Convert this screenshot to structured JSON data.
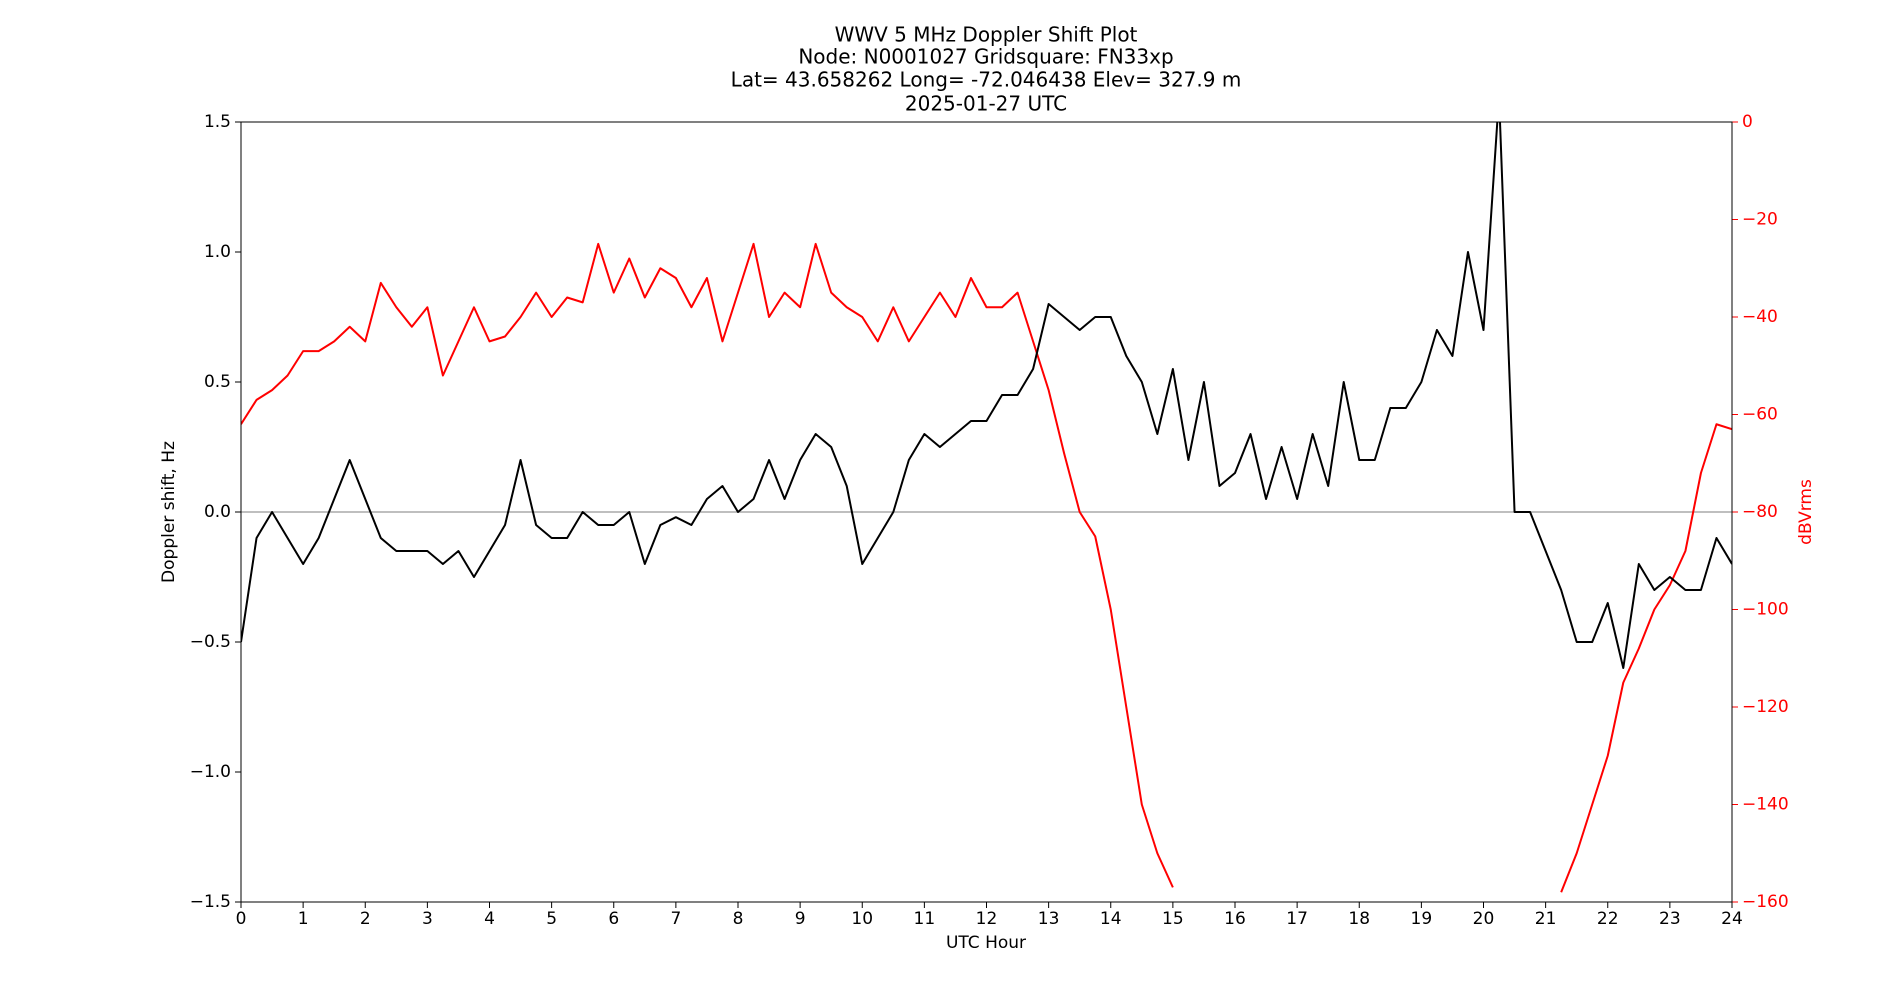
{
  "chart_data": {
    "type": "line",
    "title": "WWV 5 MHz Doppler Shift Plot",
    "subtitle": [
      "Node:  N0001027     Gridsquare:  FN33xp",
      "Lat=   43.658262    Long= -72.046438    Elev= 327.9 m",
      "2025-01-27  UTC"
    ],
    "xlabel": "UTC Hour",
    "ylabel": "Doppler shift, Hz",
    "y2label": "dBVrms",
    "x": [
      0,
      0.25,
      0.5,
      0.75,
      1,
      1.25,
      1.5,
      1.75,
      2,
      2.25,
      2.5,
      2.75,
      3,
      3.25,
      3.5,
      3.75,
      4,
      4.25,
      4.5,
      4.75,
      5,
      5.25,
      5.5,
      5.75,
      6,
      6.25,
      6.5,
      6.75,
      7,
      7.25,
      7.5,
      7.75,
      8,
      8.25,
      8.5,
      8.75,
      9,
      9.25,
      9.5,
      9.75,
      10,
      10.25,
      10.5,
      10.75,
      11,
      11.25,
      11.5,
      11.75,
      12,
      12.25,
      12.5,
      12.75,
      13,
      13.25,
      13.5,
      13.75,
      14,
      14.25,
      14.5,
      14.75,
      15,
      15.25,
      15.5,
      15.75,
      16,
      16.25,
      16.5,
      16.75,
      17,
      17.25,
      17.5,
      17.75,
      18,
      18.25,
      18.5,
      18.75,
      19,
      19.25,
      19.5,
      19.75,
      20,
      20.25,
      20.5,
      20.75,
      21,
      21.25,
      21.5,
      21.75,
      22,
      22.25,
      22.5,
      22.75,
      23,
      23.25,
      23.5,
      23.75,
      24
    ],
    "series": [
      {
        "name": "Doppler shift",
        "color": "#000000",
        "axis": "y",
        "values": [
          -0.5,
          -0.1,
          0.0,
          -0.1,
          -0.2,
          -0.1,
          0.05,
          0.2,
          0.05,
          -0.1,
          -0.15,
          -0.15,
          -0.15,
          -0.2,
          -0.15,
          -0.25,
          -0.15,
          -0.05,
          0.2,
          -0.05,
          -0.1,
          -0.1,
          0.0,
          -0.05,
          -0.05,
          0.0,
          -0.2,
          -0.05,
          -0.02,
          -0.05,
          0.05,
          0.1,
          0.0,
          0.05,
          0.2,
          0.05,
          0.2,
          0.3,
          0.25,
          0.1,
          -0.2,
          -0.1,
          0.0,
          0.2,
          0.3,
          0.25,
          0.3,
          0.35,
          0.35,
          0.45,
          0.45,
          0.55,
          0.8,
          0.75,
          0.7,
          0.75,
          0.75,
          0.6,
          0.5,
          0.3,
          0.55,
          0.2,
          0.5,
          0.1,
          0.15,
          0.3,
          0.05,
          0.25,
          0.05,
          0.3,
          0.1,
          0.5,
          0.2,
          0.2,
          0.4,
          0.4,
          0.5,
          0.7,
          0.6,
          1.0,
          0.7,
          1.6,
          0.0,
          0.0,
          -0.15,
          -0.3,
          -0.5,
          -0.5,
          -0.35,
          -0.6,
          -0.2,
          -0.3,
          -0.25,
          -0.3,
          -0.3,
          -0.1,
          -0.2
        ]
      },
      {
        "name": "dBVrms",
        "color": "#ff0000",
        "axis": "y2",
        "values": [
          -62,
          -57,
          -55,
          -52,
          -47,
          -47,
          -45,
          -42,
          -45,
          -33,
          -38,
          -42,
          -38,
          -52,
          -45,
          -38,
          -45,
          -44,
          -40,
          -35,
          -40,
          -36,
          -37,
          -25,
          -35,
          -28,
          -36,
          -30,
          -32,
          -38,
          -32,
          -45,
          -35,
          -25,
          -40,
          -35,
          -38,
          -25,
          -35,
          -38,
          -40,
          -45,
          -38,
          -45,
          -40,
          -35,
          -40,
          -32,
          -38,
          -38,
          -35,
          -45,
          -55,
          -68,
          -80,
          -85,
          -100,
          -120,
          -140,
          -150,
          -157,
          null,
          null,
          null,
          null,
          null,
          null,
          null,
          null,
          null,
          null,
          null,
          null,
          null,
          null,
          null,
          null,
          null,
          null,
          null,
          null,
          null,
          null,
          null,
          null,
          -158,
          -150,
          -140,
          -130,
          -115,
          -108,
          -100,
          -95,
          -88,
          -72,
          -62,
          -63
        ]
      }
    ],
    "xlim": [
      0,
      24
    ],
    "xticks": [
      0,
      1,
      2,
      3,
      4,
      5,
      6,
      7,
      8,
      9,
      10,
      11,
      12,
      13,
      14,
      15,
      16,
      17,
      18,
      19,
      20,
      21,
      22,
      23,
      24
    ],
    "ylim": [
      -1.5,
      1.5
    ],
    "yticks": [
      {
        "value": -1.5,
        "label": "−1.5"
      },
      {
        "value": -1.0,
        "label": "−1.0"
      },
      {
        "value": -0.5,
        "label": "−0.5"
      },
      {
        "value": 0,
        "label": "0.0"
      },
      0.5,
      {
        "value": 1.0,
        "label": "1.0"
      },
      1.5
    ],
    "y2lim": [
      -160,
      0
    ],
    "y2ticks": [
      {
        "value": -160,
        "label": "−160"
      },
      {
        "value": -140,
        "label": "−140"
      },
      {
        "value": -120,
        "label": "−120"
      },
      {
        "value": -100,
        "label": "−100"
      },
      {
        "value": -80,
        "label": "−80"
      },
      {
        "value": -60,
        "label": "−60"
      },
      {
        "value": -40,
        "label": "−40"
      },
      {
        "value": -20,
        "label": "−20"
      },
      0
    ],
    "y2color": "#ff0000",
    "axhline": 0
  }
}
